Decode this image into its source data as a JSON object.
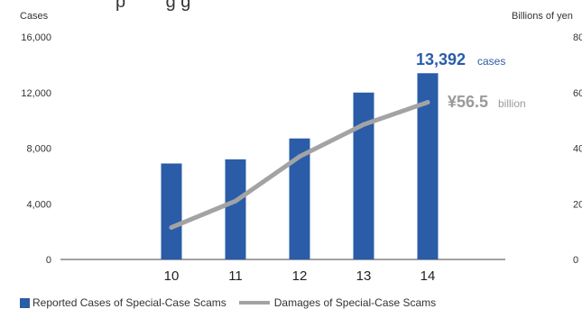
{
  "title_fragment": "p        g g",
  "chart_data": {
    "type": "bar",
    "categories": [
      "10",
      "11",
      "12",
      "13",
      "14"
    ],
    "series": [
      {
        "name": "Reported Cases of Special-Case Scams",
        "kind": "bar",
        "axis": "left",
        "values": [
          6900,
          7200,
          8700,
          12000,
          13392
        ]
      },
      {
        "name": "Damages of Special-Case Scams",
        "kind": "line",
        "axis": "right",
        "values": [
          11.5,
          21,
          37,
          48.5,
          56.5
        ]
      }
    ],
    "ylabel_left": "Cases",
    "ylabel_right": "Billions of yen",
    "ylim_left": [
      0,
      16000
    ],
    "ylim_right": [
      0,
      80
    ],
    "yticks_left": [
      "0",
      "4,000",
      "8,000",
      "12,000",
      "16,000"
    ],
    "yticks_right": [
      "0",
      "20",
      "40",
      "60",
      "80"
    ],
    "annotations": {
      "cases_value": "13,392",
      "cases_unit": "cases",
      "damages_value": "¥56.5",
      "damages_unit": "billion"
    },
    "grid": false,
    "legend_position": "bottom-left"
  },
  "colors": {
    "bar": "#2a5ca8",
    "line": "#a3a3a3",
    "axis": "#444444"
  }
}
